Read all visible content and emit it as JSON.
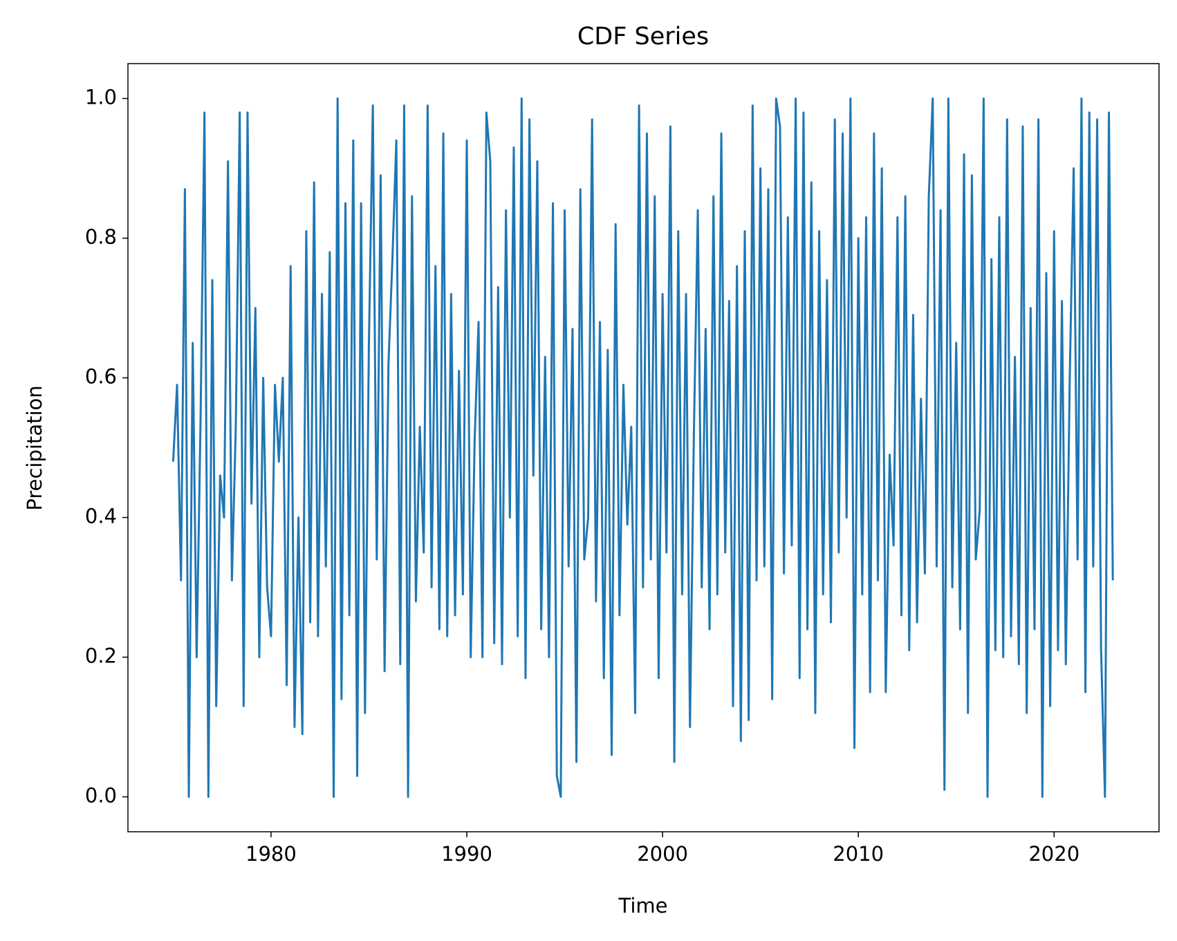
{
  "chart_data": {
    "type": "line",
    "title": "CDF Series",
    "x_label": "Time",
    "y_label": "Precipitation",
    "xlim": [
      1972.69,
      2025.36
    ],
    "ylim": [
      -0.05,
      1.05
    ],
    "xticks": [
      1980,
      1990,
      2000,
      2010,
      2020
    ],
    "yticks": [
      {
        "value": 0,
        "label": "0.0"
      },
      0.2,
      0.4,
      0.6,
      0.8,
      {
        "value": 1,
        "label": "1.0"
      }
    ],
    "grid": false,
    "x": [
      1975,
      1975.2,
      1975.4,
      1975.6,
      1975.8,
      1976,
      1976.2,
      1976.4,
      1976.6,
      1976.8,
      1977,
      1977.2,
      1977.4,
      1977.6,
      1977.8,
      1978,
      1978.2,
      1978.4,
      1978.6,
      1978.8,
      1979,
      1979.2,
      1979.4,
      1979.6,
      1979.8,
      1980,
      1980.2,
      1980.4,
      1980.6,
      1980.8,
      1981,
      1981.2,
      1981.4,
      1981.6,
      1981.8,
      1982,
      1982.2,
      1982.4,
      1982.6,
      1982.8,
      1983,
      1983.2,
      1983.4,
      1983.6,
      1983.8,
      1984,
      1984.2,
      1984.4,
      1984.6,
      1984.8,
      1985,
      1985.2,
      1985.4,
      1985.6,
      1985.8,
      1986,
      1986.2,
      1986.4,
      1986.6,
      1986.8,
      1987,
      1987.2,
      1987.4,
      1987.6,
      1987.8,
      1988,
      1988.2,
      1988.4,
      1988.6,
      1988.8,
      1989,
      1989.2,
      1989.4,
      1989.6,
      1989.8,
      1990,
      1990.2,
      1990.4,
      1990.6,
      1990.8,
      1991,
      1991.2,
      1991.4,
      1991.6,
      1991.8,
      1992,
      1992.2,
      1992.4,
      1992.6,
      1992.8,
      1993,
      1993.2,
      1993.4,
      1993.6,
      1993.8,
      1994,
      1994.2,
      1994.4,
      1994.6,
      1994.8,
      1995,
      1995.2,
      1995.4,
      1995.6,
      1995.8,
      1996,
      1996.2,
      1996.4,
      1996.6,
      1996.8,
      1997,
      1997.2,
      1997.4,
      1997.6,
      1997.8,
      1998,
      1998.2,
      1998.4,
      1998.6,
      1998.8,
      1999,
      1999.2,
      1999.4,
      1999.6,
      1999.8,
      2000,
      2000.2,
      2000.4,
      2000.6,
      2000.8,
      2001,
      2001.2,
      2001.4,
      2001.6,
      2001.8,
      2002,
      2002.2,
      2002.4,
      2002.6,
      2002.8,
      2003,
      2003.2,
      2003.4,
      2003.6,
      2003.8,
      2004,
      2004.2,
      2004.4,
      2004.6,
      2004.8,
      2005,
      2005.2,
      2005.4,
      2005.6,
      2005.8,
      2006,
      2006.2,
      2006.4,
      2006.6,
      2006.8,
      2007,
      2007.2,
      2007.4,
      2007.6,
      2007.8,
      2008,
      2008.2,
      2008.4,
      2008.6,
      2008.8,
      2009,
      2009.2,
      2009.4,
      2009.6,
      2009.8,
      2010,
      2010.2,
      2010.4,
      2010.6,
      2010.8,
      2011,
      2011.2,
      2011.4,
      2011.6,
      2011.8,
      2012,
      2012.2,
      2012.4,
      2012.6,
      2012.8,
      2013,
      2013.2,
      2013.4,
      2013.6,
      2013.8,
      2014,
      2014.2,
      2014.4,
      2014.6,
      2014.8,
      2015,
      2015.2,
      2015.4,
      2015.6,
      2015.8,
      2016,
      2016.2,
      2016.4,
      2016.6,
      2016.8,
      2017,
      2017.2,
      2017.4,
      2017.6,
      2017.8,
      2018,
      2018.2,
      2018.4,
      2018.6,
      2018.8,
      2019,
      2019.2,
      2019.4,
      2019.6,
      2019.8,
      2020,
      2020.2,
      2020.4,
      2020.6,
      2020.8,
      2021,
      2021.2,
      2021.4,
      2021.6,
      2021.8,
      2022,
      2022.2,
      2022.4,
      2022.6,
      2022.8,
      2023
    ],
    "series": [
      {
        "color": "#1f77b4",
        "values": [
          0.48,
          0.59,
          0.31,
          0.87,
          0.0,
          0.65,
          0.2,
          0.54,
          0.98,
          0.0,
          0.74,
          0.13,
          0.46,
          0.4,
          0.91,
          0.31,
          0.53,
          0.98,
          0.13,
          0.98,
          0.42,
          0.7,
          0.2,
          0.6,
          0.3,
          0.23,
          0.59,
          0.48,
          0.6,
          0.16,
          0.76,
          0.1,
          0.4,
          0.09,
          0.81,
          0.25,
          0.88,
          0.23,
          0.72,
          0.33,
          0.78,
          0.0,
          1.0,
          0.14,
          0.85,
          0.26,
          0.94,
          0.03,
          0.85,
          0.12,
          0.65,
          0.99,
          0.34,
          0.89,
          0.18,
          0.62,
          0.77,
          0.94,
          0.19,
          0.99,
          0.0,
          0.86,
          0.28,
          0.53,
          0.35,
          0.99,
          0.3,
          0.76,
          0.24,
          0.95,
          0.23,
          0.72,
          0.26,
          0.61,
          0.29,
          0.94,
          0.2,
          0.51,
          0.68,
          0.2,
          0.98,
          0.91,
          0.22,
          0.73,
          0.19,
          0.84,
          0.4,
          0.93,
          0.23,
          1.0,
          0.17,
          0.97,
          0.46,
          0.91,
          0.24,
          0.63,
          0.2,
          0.85,
          0.03,
          0.0,
          0.84,
          0.33,
          0.67,
          0.05,
          0.87,
          0.34,
          0.4,
          0.97,
          0.28,
          0.68,
          0.17,
          0.64,
          0.06,
          0.82,
          0.26,
          0.59,
          0.39,
          0.53,
          0.12,
          0.99,
          0.3,
          0.95,
          0.34,
          0.86,
          0.17,
          0.72,
          0.35,
          0.96,
          0.05,
          0.81,
          0.29,
          0.72,
          0.1,
          0.52,
          0.84,
          0.3,
          0.67,
          0.24,
          0.86,
          0.29,
          0.95,
          0.35,
          0.71,
          0.13,
          0.76,
          0.08,
          0.81,
          0.11,
          0.99,
          0.31,
          0.9,
          0.33,
          0.87,
          0.14,
          1.0,
          0.96,
          0.32,
          0.83,
          0.36,
          1.0,
          0.17,
          0.98,
          0.24,
          0.88,
          0.12,
          0.81,
          0.29,
          0.74,
          0.25,
          0.97,
          0.35,
          0.95,
          0.4,
          1.0,
          0.07,
          0.8,
          0.29,
          0.83,
          0.15,
          0.95,
          0.31,
          0.9,
          0.15,
          0.49,
          0.36,
          0.83,
          0.26,
          0.86,
          0.21,
          0.69,
          0.25,
          0.57,
          0.32,
          0.86,
          1.0,
          0.33,
          0.84,
          0.01,
          1.0,
          0.3,
          0.65,
          0.24,
          0.92,
          0.12,
          0.89,
          0.34,
          0.41,
          1.0,
          0.0,
          0.77,
          0.21,
          0.83,
          0.2,
          0.97,
          0.23,
          0.63,
          0.19,
          0.96,
          0.12,
          0.7,
          0.24,
          0.97,
          0.0,
          0.75,
          0.13,
          0.81,
          0.21,
          0.71,
          0.19,
          0.6,
          0.9,
          0.34,
          1.0,
          0.15,
          0.98,
          0.33,
          0.97,
          0.21,
          0.0,
          0.98,
          0.31
        ]
      }
    ]
  }
}
